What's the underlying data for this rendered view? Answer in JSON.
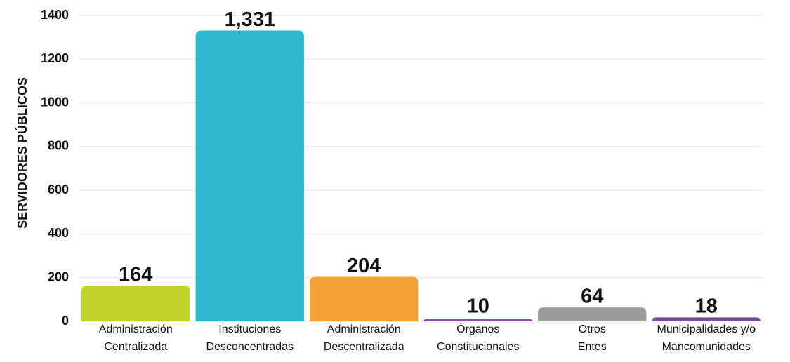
{
  "chart_data": {
    "type": "bar",
    "y_label": "SERVIDORES PÚBLICOS",
    "categories": [
      [
        "Administración",
        "Centralizada"
      ],
      [
        "Instituciones",
        "Desconcentradas"
      ],
      [
        "Administración",
        "Descentralizada"
      ],
      [
        "Órganos",
        "Constitucionales"
      ],
      [
        "Otros",
        "Entes"
      ],
      [
        "Municipalidades y/o",
        "Mancomunidades"
      ]
    ],
    "values": [
      164,
      1331,
      204,
      10,
      64,
      18
    ],
    "value_labels": [
      "164",
      "1,331",
      "204",
      "10",
      "64",
      "18"
    ],
    "colors": [
      "#c1d22b",
      "#2cb7cf",
      "#f3a236",
      "#8c4c9c",
      "#9b9b9b",
      "#7b4a98"
    ],
    "ylim": [
      0,
      1400
    ],
    "yticks": [
      0,
      200,
      400,
      600,
      800,
      1000,
      1200,
      1400
    ],
    "grid": true
  }
}
